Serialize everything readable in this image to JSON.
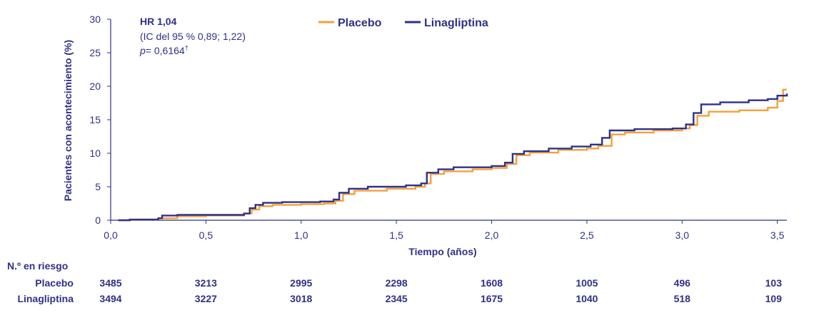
{
  "chart_data": {
    "type": "line",
    "ylabel": "Pacientes con acontecimiento (%)",
    "xlabel": "Tiempo (años)",
    "xlim": [
      0,
      3.55
    ],
    "ylim": [
      0,
      30
    ],
    "x_ticks": [
      "0,0",
      "0,5",
      "1,0",
      "1,5",
      "2,0",
      "2,5",
      "3,0",
      "3,5"
    ],
    "y_ticks": [
      "0",
      "5",
      "10",
      "15",
      "20",
      "25",
      "30"
    ],
    "grid": false,
    "legend_position": "top-center",
    "annotation": {
      "line1": "HR 1,04",
      "line2": "(IC del 95 % 0,89; 1,22)",
      "line3_italic": "p",
      "line3_rest": "= 0,6164",
      "line3_sup": "†"
    },
    "series": [
      {
        "name": "Placebo",
        "color": "#f4a03a",
        "points": [
          [
            0.04,
            0
          ],
          [
            0.1,
            0.1
          ],
          [
            0.25,
            0.3
          ],
          [
            0.35,
            0.6
          ],
          [
            0.5,
            0.7
          ],
          [
            0.7,
            1.0
          ],
          [
            0.74,
            1.6
          ],
          [
            0.78,
            2.1
          ],
          [
            0.85,
            2.3
          ],
          [
            1.0,
            2.4
          ],
          [
            1.12,
            2.5
          ],
          [
            1.18,
            2.9
          ],
          [
            1.22,
            3.9
          ],
          [
            1.28,
            4.4
          ],
          [
            1.45,
            4.7
          ],
          [
            1.6,
            5.0
          ],
          [
            1.65,
            5.5
          ],
          [
            1.68,
            6.9
          ],
          [
            1.75,
            7.3
          ],
          [
            1.9,
            7.6
          ],
          [
            2.0,
            7.8
          ],
          [
            2.08,
            8.4
          ],
          [
            2.13,
            9.7
          ],
          [
            2.2,
            10.1
          ],
          [
            2.35,
            10.5
          ],
          [
            2.5,
            10.7
          ],
          [
            2.56,
            11.1
          ],
          [
            2.63,
            12.8
          ],
          [
            2.7,
            13.1
          ],
          [
            2.85,
            13.4
          ],
          [
            3.0,
            13.7
          ],
          [
            3.04,
            14.2
          ],
          [
            3.08,
            15.6
          ],
          [
            3.14,
            16.2
          ],
          [
            3.3,
            16.4
          ],
          [
            3.45,
            16.8
          ],
          [
            3.5,
            17.8
          ],
          [
            3.53,
            19.5
          ],
          [
            3.55,
            19.5
          ]
        ]
      },
      {
        "name": "Linagliptina",
        "color": "#2e3187",
        "points": [
          [
            0.04,
            0
          ],
          [
            0.1,
            0.1
          ],
          [
            0.25,
            0.3
          ],
          [
            0.27,
            0.7
          ],
          [
            0.35,
            0.8
          ],
          [
            0.5,
            0.8
          ],
          [
            0.7,
            1.0
          ],
          [
            0.73,
            1.8
          ],
          [
            0.76,
            2.3
          ],
          [
            0.8,
            2.6
          ],
          [
            0.9,
            2.7
          ],
          [
            1.1,
            2.8
          ],
          [
            1.17,
            3.1
          ],
          [
            1.2,
            4.1
          ],
          [
            1.25,
            4.7
          ],
          [
            1.35,
            5.0
          ],
          [
            1.55,
            5.2
          ],
          [
            1.63,
            5.5
          ],
          [
            1.66,
            7.1
          ],
          [
            1.72,
            7.6
          ],
          [
            1.8,
            7.9
          ],
          [
            2.0,
            8.1
          ],
          [
            2.07,
            8.6
          ],
          [
            2.11,
            9.9
          ],
          [
            2.17,
            10.3
          ],
          [
            2.3,
            10.7
          ],
          [
            2.42,
            11.0
          ],
          [
            2.52,
            11.3
          ],
          [
            2.58,
            12.3
          ],
          [
            2.62,
            13.4
          ],
          [
            2.75,
            13.6
          ],
          [
            2.95,
            13.7
          ],
          [
            3.02,
            14.3
          ],
          [
            3.06,
            16.0
          ],
          [
            3.1,
            17.3
          ],
          [
            3.2,
            17.6
          ],
          [
            3.35,
            17.9
          ],
          [
            3.45,
            18.1
          ],
          [
            3.5,
            18.6
          ],
          [
            3.55,
            18.9
          ]
        ]
      }
    ]
  },
  "risk_table": {
    "title": "N.º en riesgo",
    "rows": [
      {
        "label": "Placebo",
        "values": [
          "3485",
          "3213",
          "2995",
          "2298",
          "1608",
          "1005",
          "496",
          "103"
        ]
      },
      {
        "label": "Linagliptina",
        "values": [
          "3494",
          "3227",
          "3018",
          "2345",
          "1675",
          "1040",
          "518",
          "109"
        ]
      }
    ]
  }
}
